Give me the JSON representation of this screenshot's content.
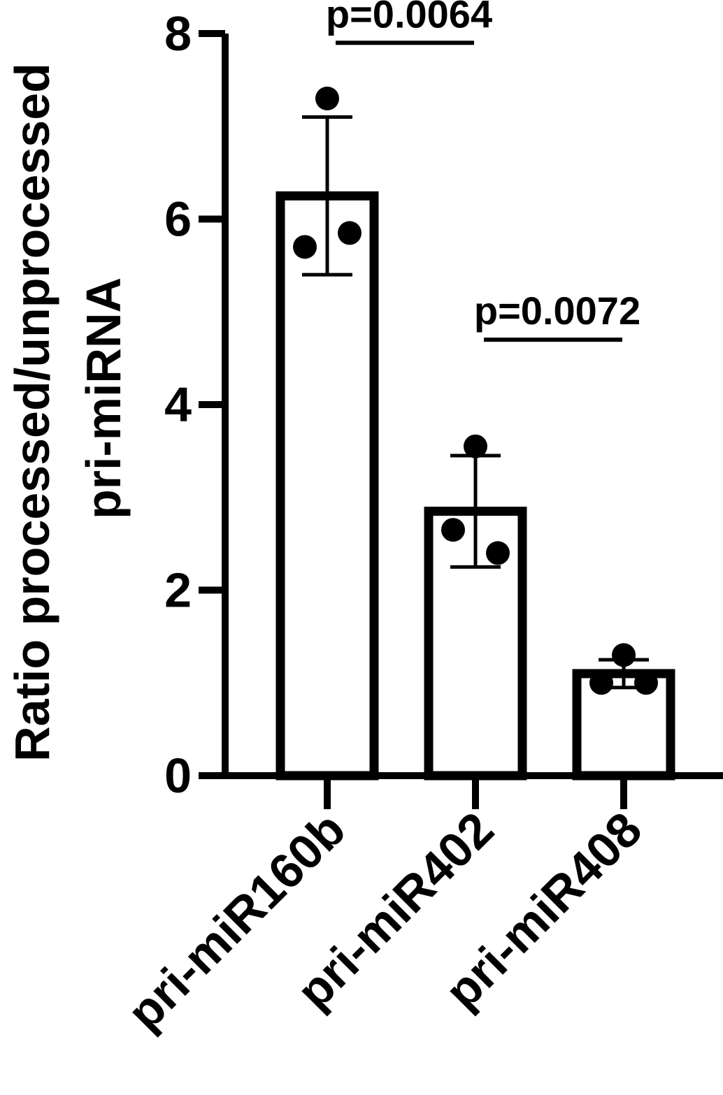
{
  "chart_data": {
    "type": "bar",
    "categories": [
      "pri-miR160b",
      "pri-miR402",
      "pri-miR408"
    ],
    "values": [
      6.25,
      2.85,
      1.1
    ],
    "error": [
      0.85,
      0.6,
      0.15
    ],
    "points": [
      [
        7.3,
        5.7,
        5.85
      ],
      [
        3.55,
        2.65,
        2.4
      ],
      [
        1.3,
        1.0,
        1.0
      ]
    ],
    "ylabel_line1": "Ratio processed/unprocessed",
    "ylabel_line2": "pri-miRNA",
    "ylim": [
      0,
      8
    ],
    "yticks": [
      0,
      2,
      4,
      6,
      8
    ],
    "grid": false,
    "annotations": [
      {
        "text": "p=0.0064",
        "from": 0,
        "to": 1,
        "y": 7.9
      },
      {
        "text": "p=0.0072",
        "from": 1,
        "to": 2,
        "y": 4.7
      }
    ],
    "colors": {
      "bar_fill": "#ffffff",
      "stroke": "#000000"
    }
  }
}
